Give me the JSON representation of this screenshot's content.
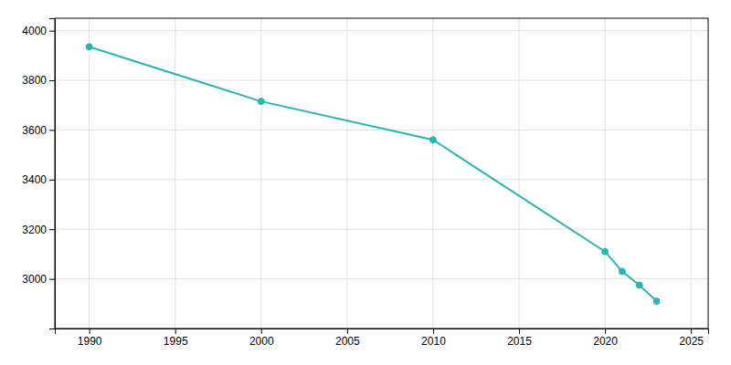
{
  "chart_data": {
    "type": "line",
    "x": [
      1990,
      2000,
      2010,
      2020,
      2021,
      2022,
      2023
    ],
    "values": [
      3935,
      3715,
      3560,
      3110,
      3030,
      2975,
      2910
    ],
    "color": "#2ab5b5",
    "marker": "circle",
    "xlim": [
      1988,
      2026
    ],
    "ylim": [
      2800,
      4050
    ],
    "xticks": [
      1990,
      1995,
      2000,
      2005,
      2010,
      2015,
      2020,
      2025
    ],
    "yticks": [
      3000,
      3200,
      3400,
      3600,
      3800,
      4000
    ],
    "grid": true
  }
}
